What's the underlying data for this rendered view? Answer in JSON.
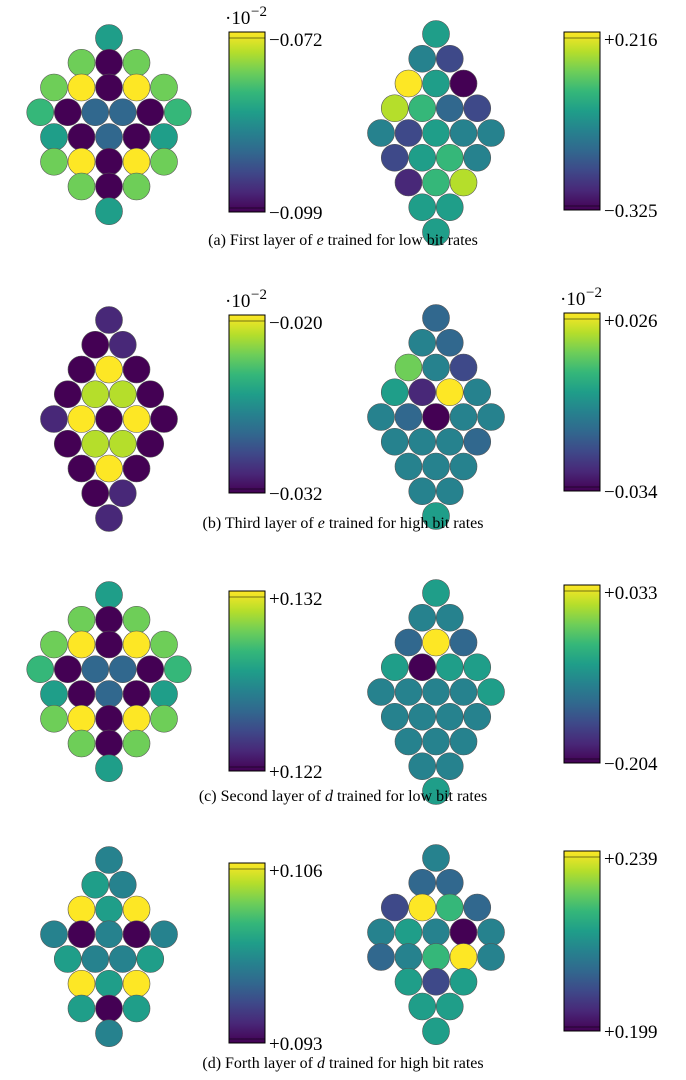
{
  "colors": {
    "viridis": [
      "#440154",
      "#482878",
      "#3e4989",
      "#31688e",
      "#26828e",
      "#1f9e89",
      "#35b779",
      "#6ece58",
      "#b5de2b",
      "#fde725"
    ],
    "circle_stroke": "#555555"
  },
  "panels": [
    {
      "caption_label": "(a) First layer of",
      "caption_var": "e",
      "caption_rest": "trained for low bit rates",
      "plots": [
        {
          "colorbar": {
            "top": "−0.072",
            "bottom": "−0.099",
            "exponent": "·10",
            "exponent_power": "−2"
          },
          "grid": [
            [
              0,
              0,
              0,
              0.5,
              0,
              0,
              0
            ],
            [
              0,
              0,
              0.8,
              0,
              0.8,
              0,
              0
            ],
            [
              0,
              1,
              0,
              0,
              0,
              1,
              0
            ],
            [
              0.7,
              0,
              0.35,
              0,
              0.35,
              0,
              0.7
            ],
            [
              0.6,
              0,
              0,
              0,
              0,
              0,
              0.6
            ],
            [
              0,
              0.7,
              0,
              0,
              0,
              0.7,
              0
            ],
            [
              0,
              0,
              0.7,
              0,
              0.7,
              0,
              0
            ]
          ]
        },
        {
          "colorbar": {
            "top": "+0.216",
            "bottom": "−0.325",
            "exponent": "",
            "exponent_power": ""
          },
          "grid": []
        }
      ]
    },
    {
      "caption_label": "(b) Third layer of",
      "caption_var": "e",
      "caption_rest": "trained for high bit rates",
      "plots": [
        {
          "colorbar": {
            "top": "−0.020",
            "bottom": "−0.032",
            "exponent": "·10",
            "exponent_power": "−2"
          },
          "grid": []
        },
        {
          "colorbar": {
            "top": "+0.026",
            "bottom": "−0.034",
            "exponent": "·10",
            "exponent_power": "−2"
          },
          "grid": []
        }
      ]
    },
    {
      "caption_label": "(c) Second layer of",
      "caption_var": "d",
      "caption_rest": "trained for low bit rates",
      "plots": [
        {
          "colorbar": {
            "top": "+0.132",
            "bottom": "+0.122",
            "exponent": "",
            "exponent_power": ""
          },
          "grid": []
        },
        {
          "colorbar": {
            "top": "+0.033",
            "bottom": "−0.204",
            "exponent": "",
            "exponent_power": ""
          },
          "grid": []
        }
      ]
    },
    {
      "caption_label": "(d) Forth layer of",
      "caption_var": "d",
      "caption_rest": "trained for high bit rates",
      "plots": [
        {
          "colorbar": {
            "top": "+0.106",
            "bottom": "+0.093",
            "exponent": "",
            "exponent_power": ""
          },
          "grid": []
        },
        {
          "colorbar": {
            "top": "+0.239",
            "bottom": "+0.199",
            "exponent": "",
            "exponent_power": ""
          },
          "grid": []
        }
      ]
    }
  ],
  "diamonds": [
    [
      [
        0.55
      ],
      [
        0.8,
        0.0,
        0.8
      ],
      [
        0.75,
        0.95,
        0.0,
        0.95,
        0.75
      ],
      [
        0.7,
        0.0,
        0.35,
        0.35,
        0.0,
        0.7
      ],
      [
        0.55,
        0.0,
        0.35,
        0.0,
        0.55
      ],
      [
        0.75,
        0.95,
        0.0,
        0.95,
        0.75
      ],
      [
        0.8,
        0.0,
        0.8
      ],
      [
        0.55
      ]
    ],
    [
      [
        0.5
      ],
      [
        0.45,
        0.25
      ],
      [
        1.0,
        0.6,
        0.0
      ],
      [
        0.85,
        0.65,
        0.3,
        0.2
      ],
      [
        0.45,
        0.25,
        0.5,
        0.45,
        0.45
      ],
      [
        0.25,
        0.6,
        0.7,
        0.45
      ],
      [
        0.15,
        0.7,
        0.85
      ],
      [
        0.5,
        0.5
      ],
      [
        0.55
      ]
    ],
    [
      [
        0.1
      ],
      [
        0.05,
        0.1
      ],
      [
        0.0,
        0.95,
        0.0
      ],
      [
        0.05,
        0.85,
        0.85,
        0.0
      ],
      [
        0.1,
        0.95,
        0.0,
        0.95,
        0.05
      ],
      [
        0.05,
        0.85,
        0.85,
        0.0
      ],
      [
        0.0,
        0.95,
        0.0
      ],
      [
        0.05,
        0.1
      ],
      [
        0.15
      ]
    ],
    [
      [
        0.3
      ],
      [
        0.45,
        0.3
      ],
      [
        0.75,
        0.45,
        0.25
      ],
      [
        0.5,
        0.1,
        1.0,
        0.4
      ],
      [
        0.45,
        0.35,
        0.0,
        0.4,
        0.45
      ],
      [
        0.4,
        0.45,
        0.4,
        0.35
      ],
      [
        0.4,
        0.45,
        0.45
      ],
      [
        0.45,
        0.45
      ],
      [
        0.5
      ]
    ],
    [
      [
        0.55
      ],
      [
        0.8,
        0.0,
        0.8
      ],
      [
        0.75,
        0.95,
        0.0,
        0.95,
        0.75
      ],
      [
        0.7,
        0.0,
        0.35,
        0.35,
        0.0,
        0.7
      ],
      [
        0.55,
        0.0,
        0.35,
        0.0,
        0.55
      ],
      [
        0.75,
        0.95,
        0.0,
        0.95,
        0.75
      ],
      [
        0.8,
        0.0,
        0.8
      ],
      [
        0.55
      ]
    ],
    [
      [
        0.5
      ],
      [
        0.45,
        0.45
      ],
      [
        0.3,
        1.0,
        0.3
      ],
      [
        0.55,
        0.0,
        0.5,
        0.5
      ],
      [
        0.45,
        0.45,
        0.45,
        0.45,
        0.55
      ],
      [
        0.45,
        0.45,
        0.45,
        0.45
      ],
      [
        0.45,
        0.45,
        0.45
      ],
      [
        0.45,
        0.45
      ],
      [
        0.55
      ]
    ],
    [
      [
        0.4
      ],
      [
        0.6,
        0.4
      ],
      [
        1.0,
        0.5,
        1.0
      ],
      [
        0.45,
        0.0,
        0.45,
        0.0,
        0.45
      ],
      [
        0.6,
        0.45,
        0.45,
        0.6
      ],
      [
        1.0,
        0.5,
        1.0
      ],
      [
        0.6,
        0.0,
        0.6
      ],
      [
        0.4
      ]
    ],
    [
      [
        0.4
      ],
      [
        0.35,
        0.35
      ],
      [
        0.25,
        1.0,
        0.7,
        0.35
      ],
      [
        0.45,
        0.6,
        0.4,
        0.0,
        0.4
      ],
      [
        0.35,
        0.4,
        0.7,
        1.0,
        0.45
      ],
      [
        0.55,
        0.2,
        0.55
      ],
      [
        0.5,
        0.5
      ],
      [
        0.55
      ]
    ]
  ]
}
